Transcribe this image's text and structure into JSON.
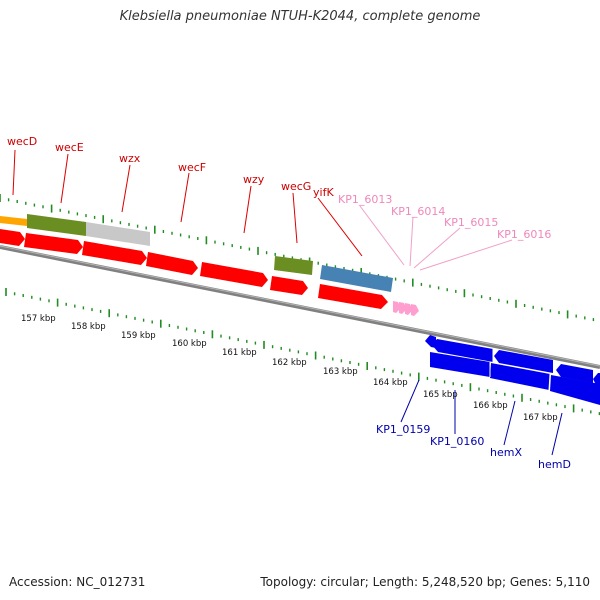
{
  "title": "Klebsiella pneumoniae NTUH-K2044, complete genome",
  "footer": {
    "accession": "Accession: NC_012731",
    "info": "Topology: circular; Length: 5,248,520 bp; Genes: 5,110"
  },
  "colors": {
    "forward_gene": "#ff0000",
    "reverse_gene": "#0000ee",
    "cds_green": "#6b8e23",
    "cds_gray": "#c8c8c8",
    "cds_steelblue": "#4682b4",
    "cds_orange": "#ffa500",
    "trna_pink": "#ff9fd0",
    "label_forward": "#cc0000",
    "label_reverse": "#0000aa",
    "label_pink": "#ee88bb",
    "ticks": "#228b22",
    "backbone": "#808080"
  },
  "scale_labels": [
    "157 kbp",
    "158 kbp",
    "159 kbp",
    "160 kbp",
    "161 kbp",
    "162 kbp",
    "163 kbp",
    "164 kbp",
    "165 kbp",
    "166 kbp",
    "167 kbp"
  ],
  "forward_labels": [
    "wecD",
    "wecE",
    "wzx",
    "wecF",
    "wzy",
    "wecG",
    "yifK"
  ],
  "pink_labels": [
    "KP1_6013",
    "KP1_6014",
    "KP1_6015",
    "KP1_6016"
  ],
  "reverse_labels": [
    "KP1_0159",
    "KP1_0160",
    "hemX",
    "hemD"
  ]
}
